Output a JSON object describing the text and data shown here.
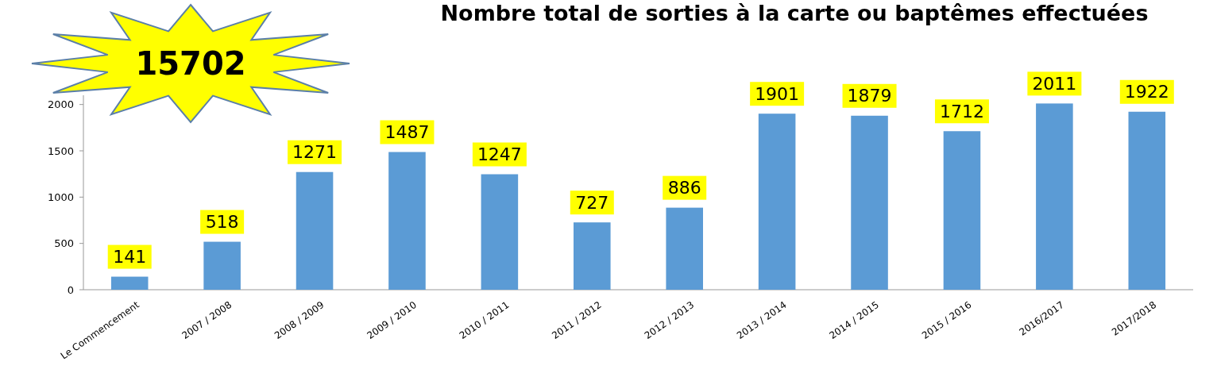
{
  "chart_data": {
    "type": "bar",
    "title": "Nombre total de sorties à la carte ou baptêmes effectuées",
    "categories": [
      "Le Commencement",
      "2007 / 2008",
      "2008 / 2009",
      "2009 / 2010",
      "2010 / 2011",
      "2011 / 2012",
      "2012 / 2013",
      "2013 / 2014",
      "2014 / 2015",
      "2015 / 2016",
      "2016/2017",
      "2017/2018"
    ],
    "values": [
      141,
      518,
      1271,
      1487,
      1247,
      727,
      886,
      1901,
      1879,
      1712,
      2011,
      1922
    ],
    "color": "#5b9bd5",
    "ylim": [
      0,
      2100
    ],
    "yticks": [
      0,
      500,
      1000,
      1500,
      2000
    ],
    "data_labels": true,
    "grid": false,
    "annotations": [
      "15702"
    ]
  }
}
